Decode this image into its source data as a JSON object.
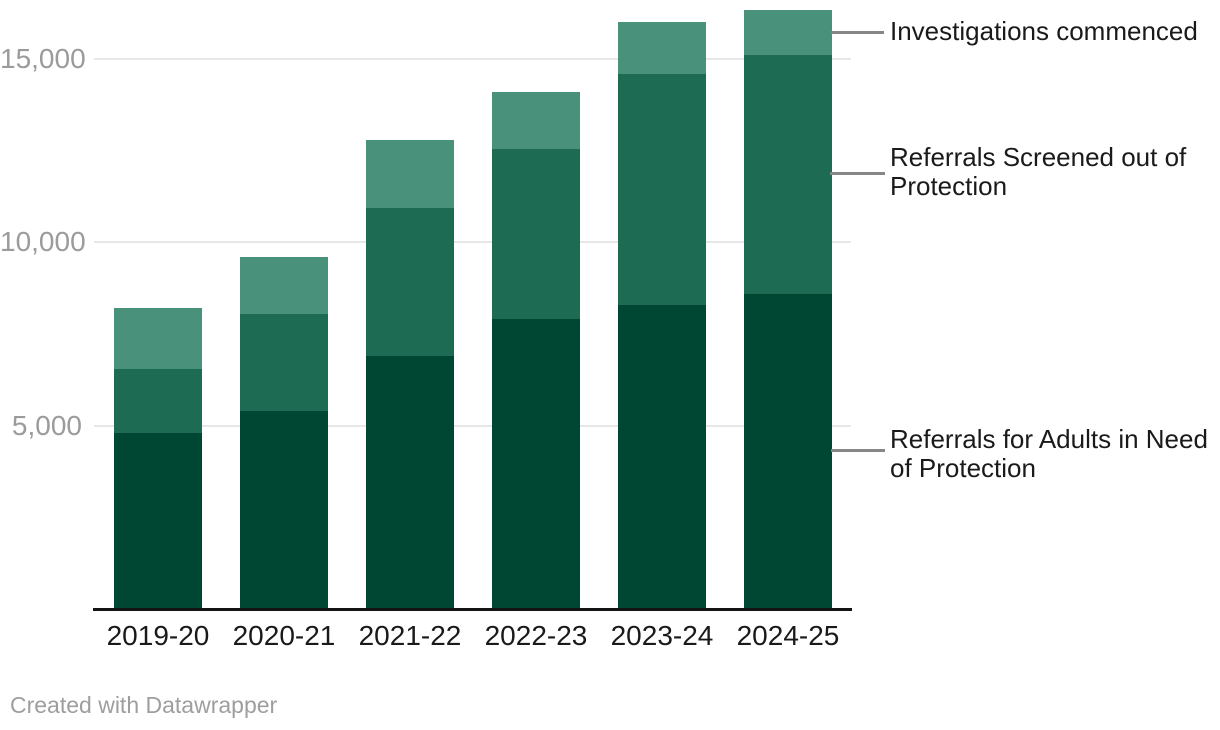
{
  "chart_data": {
    "type": "bar",
    "stacked": true,
    "title": "",
    "xlabel": "",
    "ylabel": "",
    "categories": [
      "2019-20",
      "2020-21",
      "2021-22",
      "2022-23",
      "2023-24",
      "2024-25"
    ],
    "series": [
      {
        "name": "Referrals for Adults in Need of Protection",
        "color": "#004733",
        "values": [
          4800,
          5400,
          6900,
          7900,
          8300,
          8600
        ]
      },
      {
        "name": "Referrals Screened out of Protection",
        "color": "#1e6b54",
        "values": [
          1750,
          2650,
          4050,
          4650,
          6300,
          6500
        ]
      },
      {
        "name": "Investigations commenced",
        "color": "#49917a",
        "values": [
          1650,
          1550,
          1850,
          1550,
          1400,
          1250
        ]
      }
    ],
    "totals": [
      8200,
      9600,
      12800,
      14100,
      16000,
      16350
    ],
    "ylim": [
      0,
      16500
    ],
    "yticks": [
      {
        "value": 5000,
        "label": "5,000"
      },
      {
        "value": 10000,
        "label": "10,000"
      },
      {
        "value": 15000,
        "label": "15,000"
      }
    ],
    "grid": true,
    "legend_position": "right-annotations"
  },
  "annotations": [
    {
      "lines": [
        "Investigations commenced",
        ""
      ]
    },
    {
      "lines": [
        "Referrals Screened out of",
        "Protection"
      ]
    },
    {
      "lines": [
        "Referrals for Adults in Need",
        "of Protection"
      ]
    }
  ],
  "footer": {
    "credit": "Created with Datawrapper"
  },
  "colors": {
    "series_dark": "#004733",
    "series_medium": "#1e6b54",
    "series_light": "#49917a",
    "gridline": "#e7e7e7",
    "axis_line": "#141414",
    "connector": "#868686",
    "tick_text": "#9b9b9b",
    "label_text": "#1a1a1a",
    "credit_text": "#9e9e9e"
  }
}
